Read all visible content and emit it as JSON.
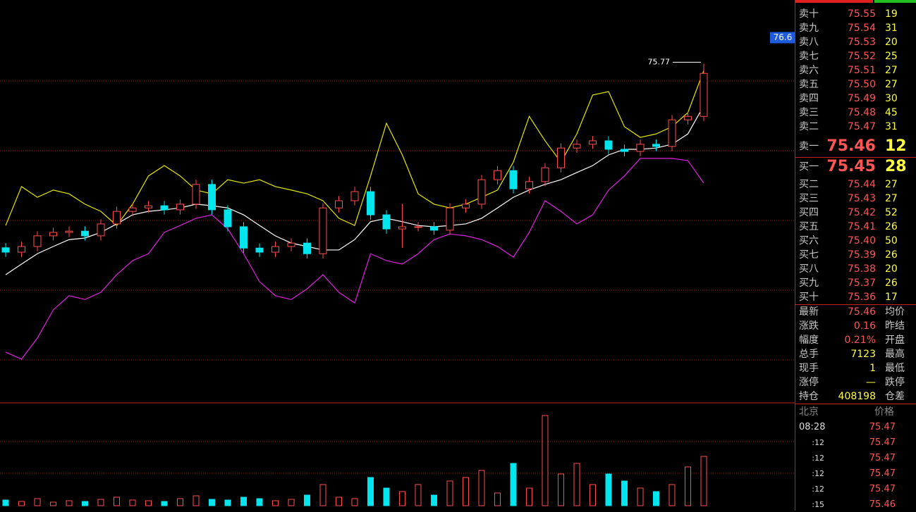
{
  "chart_data": {
    "type": "candlestick",
    "ylim": [
      65.0,
      77.8
    ],
    "up_color": "#ff4d4d",
    "down_color": "#00e5ee",
    "candles": [
      [
        69.9,
        70.05,
        69.61,
        69.76
      ],
      [
        69.76,
        70.09,
        69.61,
        69.94
      ],
      [
        69.94,
        70.43,
        69.79,
        70.28
      ],
      [
        70.28,
        70.54,
        70.13,
        70.39
      ],
      [
        70.39,
        70.58,
        70.24,
        70.43
      ],
      [
        70.43,
        70.58,
        70.13,
        70.28
      ],
      [
        70.28,
        70.81,
        70.13,
        70.66
      ],
      [
        70.66,
        71.21,
        70.51,
        71.06
      ],
      [
        71.06,
        71.32,
        70.91,
        71.17
      ],
      [
        71.17,
        71.39,
        71.02,
        71.24
      ],
      [
        71.24,
        71.39,
        70.96,
        71.11
      ],
      [
        71.11,
        71.44,
        70.96,
        71.29
      ],
      [
        71.29,
        72.07,
        71.14,
        71.92
      ],
      [
        71.92,
        72.07,
        70.96,
        71.11
      ],
      [
        71.11,
        71.26,
        70.42,
        70.57
      ],
      [
        70.57,
        70.72,
        69.74,
        69.89
      ],
      [
        69.89,
        70.04,
        69.61,
        69.76
      ],
      [
        69.76,
        70.09,
        69.61,
        69.94
      ],
      [
        69.94,
        70.2,
        69.79,
        70.05
      ],
      [
        70.05,
        70.2,
        69.56,
        69.71
      ],
      [
        69.71,
        71.32,
        69.56,
        71.17
      ],
      [
        71.17,
        71.55,
        71.02,
        71.4
      ],
      [
        71.4,
        71.84,
        71.25,
        71.69
      ],
      [
        71.69,
        71.84,
        70.8,
        70.95
      ],
      [
        70.95,
        71.1,
        70.35,
        70.5
      ],
      [
        70.5,
        71.3,
        69.9,
        70.57
      ],
      [
        70.57,
        70.72,
        70.42,
        70.57
      ],
      [
        70.57,
        70.72,
        70.31,
        70.46
      ],
      [
        70.46,
        71.32,
        70.31,
        71.17
      ],
      [
        71.17,
        71.44,
        71.02,
        71.29
      ],
      [
        71.29,
        72.22,
        71.14,
        72.07
      ],
      [
        72.07,
        72.51,
        71.92,
        72.36
      ],
      [
        72.36,
        72.51,
        71.63,
        71.78
      ],
      [
        71.78,
        72.16,
        71.63,
        72.01
      ],
      [
        72.01,
        72.6,
        71.86,
        72.45
      ],
      [
        72.45,
        73.23,
        72.3,
        73.08
      ],
      [
        73.08,
        73.35,
        72.93,
        73.2
      ],
      [
        73.2,
        73.46,
        73.05,
        73.31
      ],
      [
        73.31,
        73.46,
        72.89,
        73.04
      ],
      [
        73.04,
        73.19,
        72.82,
        72.97
      ],
      [
        72.97,
        73.35,
        72.82,
        73.2
      ],
      [
        73.2,
        73.35,
        72.98,
        73.13
      ],
      [
        73.13,
        74.13,
        72.98,
        73.98
      ],
      [
        73.98,
        74.24,
        73.83,
        74.09
      ],
      [
        74.09,
        75.77,
        73.94,
        75.46
      ]
    ],
    "bands": {
      "upper_color": "#e6e600",
      "middle_color": "#ffffff",
      "lower_color": "#e020e0",
      "upper": [
        70.61,
        71.85,
        71.51,
        71.74,
        71.62,
        71.29,
        71.06,
        70.61,
        71.29,
        72.19,
        72.52,
        72.19,
        71.74,
        71.62,
        72.07,
        71.96,
        72.07,
        71.85,
        71.74,
        71.62,
        71.4,
        70.84,
        70.61,
        72.19,
        73.87,
        72.86,
        71.62,
        71.29,
        71.17,
        71.29,
        71.51,
        71.74,
        72.63,
        74.09,
        73.31,
        72.63,
        73.53,
        74.77,
        74.88,
        73.76,
        73.42,
        73.53,
        73.76,
        74.21,
        75.55
      ],
      "middle": [
        69.04,
        69.38,
        69.71,
        69.94,
        70.16,
        70.21,
        70.39,
        70.66,
        70.95,
        71.06,
        71.11,
        71.17,
        71.29,
        71.24,
        71.17,
        70.95,
        70.61,
        70.28,
        70.05,
        69.94,
        69.83,
        69.83,
        70.16,
        70.73,
        70.84,
        70.73,
        70.61,
        70.57,
        70.61,
        70.66,
        70.84,
        71.17,
        71.51,
        71.74,
        71.92,
        72.07,
        72.3,
        72.52,
        72.86,
        73.04,
        73.04,
        73.08,
        73.2,
        73.53,
        74.43
      ],
      "lower": [
        66.57,
        66.35,
        67.02,
        67.92,
        68.37,
        68.25,
        68.48,
        69.04,
        69.49,
        69.71,
        70.39,
        70.61,
        70.84,
        70.95,
        70.5,
        69.71,
        68.82,
        68.37,
        68.25,
        68.59,
        69.04,
        68.48,
        68.14,
        69.71,
        69.49,
        69.38,
        69.71,
        70.16,
        70.34,
        70.28,
        70.16,
        69.94,
        69.6,
        70.39,
        71.4,
        71.06,
        70.66,
        70.95,
        71.74,
        72.19,
        72.75,
        72.75,
        72.75,
        72.68,
        71.96
      ]
    },
    "volumes": {
      "ylim": [
        0,
        130
      ],
      "values": [
        8,
        6,
        10,
        5,
        7,
        6,
        9,
        12,
        8,
        7,
        6,
        10,
        14,
        9,
        8,
        12,
        10,
        7,
        9,
        15,
        30,
        12,
        10,
        40,
        25,
        20,
        30,
        15,
        35,
        40,
        50,
        18,
        60,
        25,
        128,
        45,
        60,
        30,
        45,
        35,
        25,
        20,
        30,
        55,
        70
      ]
    },
    "price_tag": 76.6,
    "high_mark": 75.77
  },
  "order_book": {
    "asks": [
      [
        "卖十",
        "75.55",
        "19"
      ],
      [
        "卖九",
        "75.54",
        "31"
      ],
      [
        "卖八",
        "75.53",
        "20"
      ],
      [
        "卖七",
        "75.52",
        "25"
      ],
      [
        "卖六",
        "75.51",
        "27"
      ],
      [
        "卖五",
        "75.50",
        "27"
      ],
      [
        "卖四",
        "75.49",
        "30"
      ],
      [
        "卖三",
        "75.48",
        "45"
      ],
      [
        "卖二",
        "75.47",
        "31"
      ],
      [
        "卖一",
        "75.46",
        "12"
      ]
    ],
    "bids": [
      [
        "买一",
        "75.45",
        "28"
      ],
      [
        "买二",
        "75.44",
        "27"
      ],
      [
        "买三",
        "75.43",
        "27"
      ],
      [
        "买四",
        "75.42",
        "52"
      ],
      [
        "买五",
        "75.41",
        "26"
      ],
      [
        "买六",
        "75.40",
        "50"
      ],
      [
        "买七",
        "75.39",
        "26"
      ],
      [
        "买八",
        "75.38",
        "20"
      ],
      [
        "买九",
        "75.37",
        "26"
      ],
      [
        "买十",
        "75.36",
        "17"
      ]
    ]
  },
  "quote": [
    [
      "最新",
      "75.46",
      "均价"
    ],
    [
      "涨跌",
      "0.16",
      "昨结"
    ],
    [
      "幅度",
      "0.21%",
      "开盘"
    ],
    [
      "总手",
      "7123",
      "最高"
    ],
    [
      "现手",
      "1",
      "最低"
    ],
    [
      "涨停",
      "—",
      "跌停"
    ],
    [
      "持仓",
      "408198",
      "仓差"
    ]
  ],
  "ticks": {
    "header": [
      "北京",
      "价格"
    ],
    "rows": [
      [
        "08:28",
        "75.47"
      ],
      [
        ":12",
        "75.47"
      ],
      [
        ":12",
        "75.47"
      ],
      [
        ":12",
        "75.47"
      ],
      [
        ":12",
        "75.47"
      ],
      [
        ":15",
        "75.46"
      ]
    ]
  }
}
